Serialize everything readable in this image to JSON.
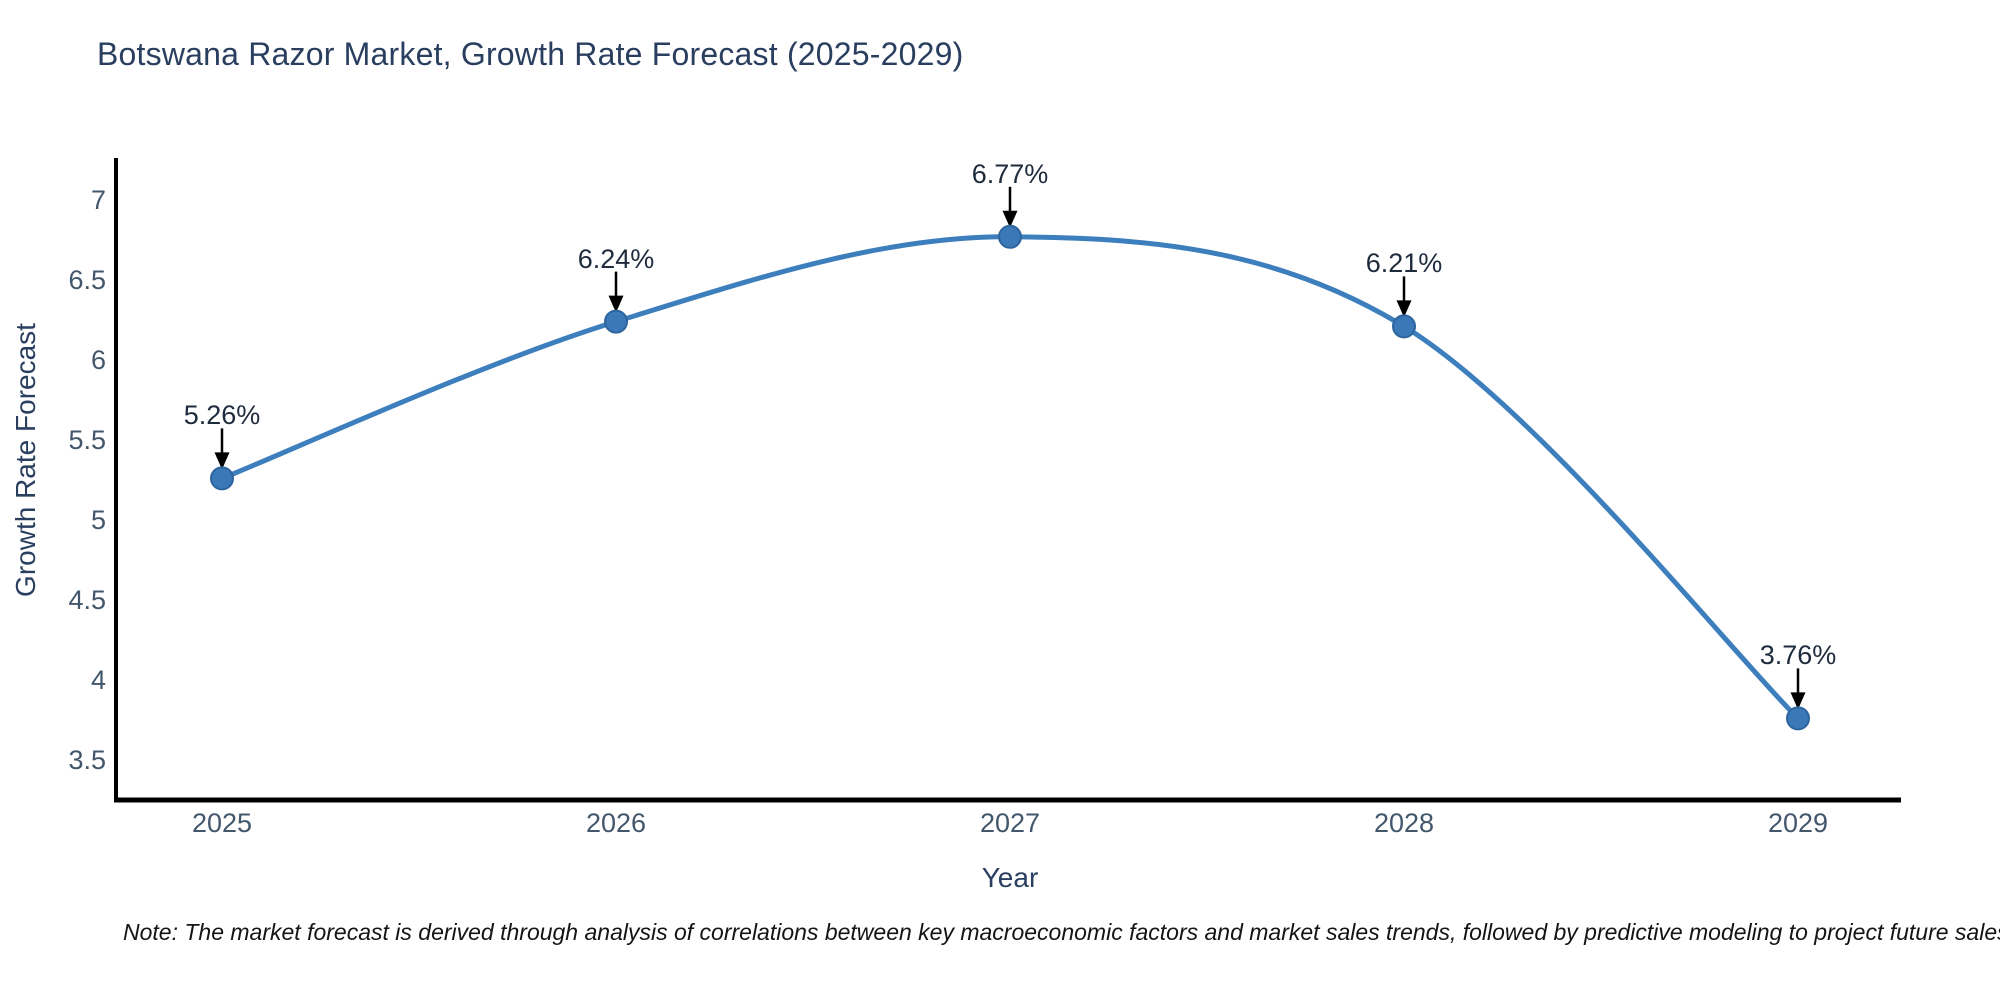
{
  "title": "Botswana Razor Market, Growth Rate Forecast (2025-2029)",
  "footnote": "Note: The market forecast is derived through analysis of correlations between key macroeconomic factors and market sales trends, followed by predictive modeling to project future sales",
  "colors": {
    "title": "#2a3f5f",
    "tick": "#42576b",
    "line": "#3d7ebd",
    "marker_fill": "#3a78b8",
    "marker_edge": "#2f659e",
    "axis": "#000000",
    "annotation_text": "#1e2b3c",
    "annotation_arrow": "#000000",
    "note": "#141414"
  },
  "chart_data": {
    "type": "line",
    "line_shape": "spline",
    "markers": true,
    "grid": false,
    "legend": "none",
    "title": "Botswana Razor Market, Growth Rate Forecast (2025-2029)",
    "xlabel": "Year",
    "ylabel": "Growth Rate Forecast",
    "x": [
      2025,
      2026,
      2027,
      2028,
      2029
    ],
    "y": [
      5.26,
      6.24,
      6.77,
      6.21,
      3.76
    ],
    "annotations": [
      "5.26%",
      "6.24%",
      "6.77%",
      "6.21%",
      "3.76%"
    ],
    "xtick_labels": [
      "2025",
      "2026",
      "2027",
      "2028",
      "2029"
    ],
    "ytick_labels": [
      "7",
      "6.5",
      "6",
      "5.5",
      "5",
      "4.5",
      "4",
      "3.5"
    ],
    "yticks": [
      7,
      6.5,
      6,
      5.5,
      5,
      4.5,
      4,
      3.5
    ],
    "ylim": [
      3.25,
      7.26
    ]
  }
}
